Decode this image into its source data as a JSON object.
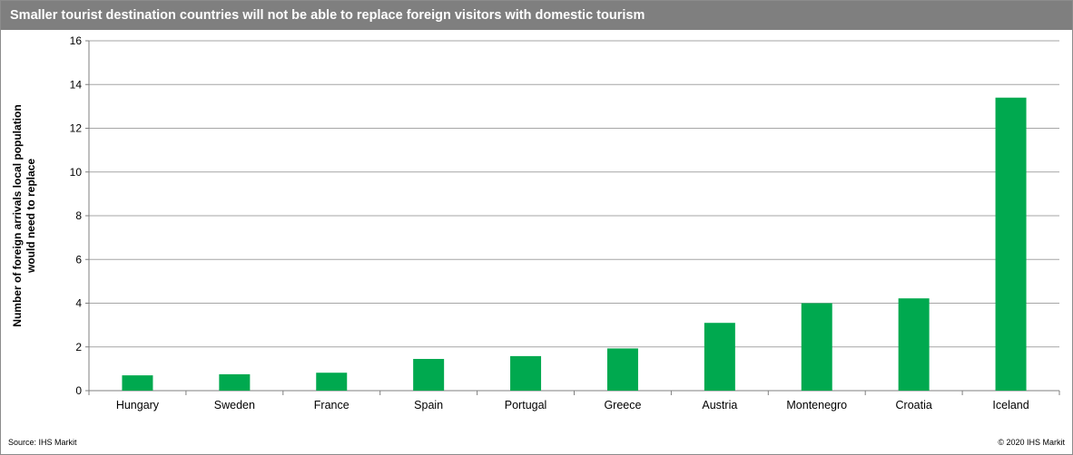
{
  "header": {
    "title": "Smaller tourist destination countries will not be able to replace foreign visitors with domestic tourism"
  },
  "footer": {
    "source": "Source:  IHS Markit",
    "copyright": "© 2020  IHS Markit"
  },
  "colors": {
    "title_bar": "#7f7f7f",
    "bar": "#00a94f",
    "grid": "#a6a6a6"
  },
  "chart_data": {
    "type": "bar",
    "title": "",
    "xlabel": "",
    "ylabel_lines": [
      "Number of foreign arrivals local population",
      "would need to replace"
    ],
    "categories": [
      "Hungary",
      "Sweden",
      "France",
      "Spain",
      "Portugal",
      "Greece",
      "Austria",
      "Montenegro",
      "Croatia",
      "Iceland"
    ],
    "values": [
      0.7,
      0.75,
      0.82,
      1.45,
      1.58,
      1.93,
      3.1,
      4.0,
      4.22,
      13.4
    ],
    "ylim": [
      0,
      16
    ],
    "yticks": [
      0,
      2,
      4,
      6,
      8,
      10,
      12,
      14,
      16
    ],
    "grid": true,
    "legend": "none"
  }
}
